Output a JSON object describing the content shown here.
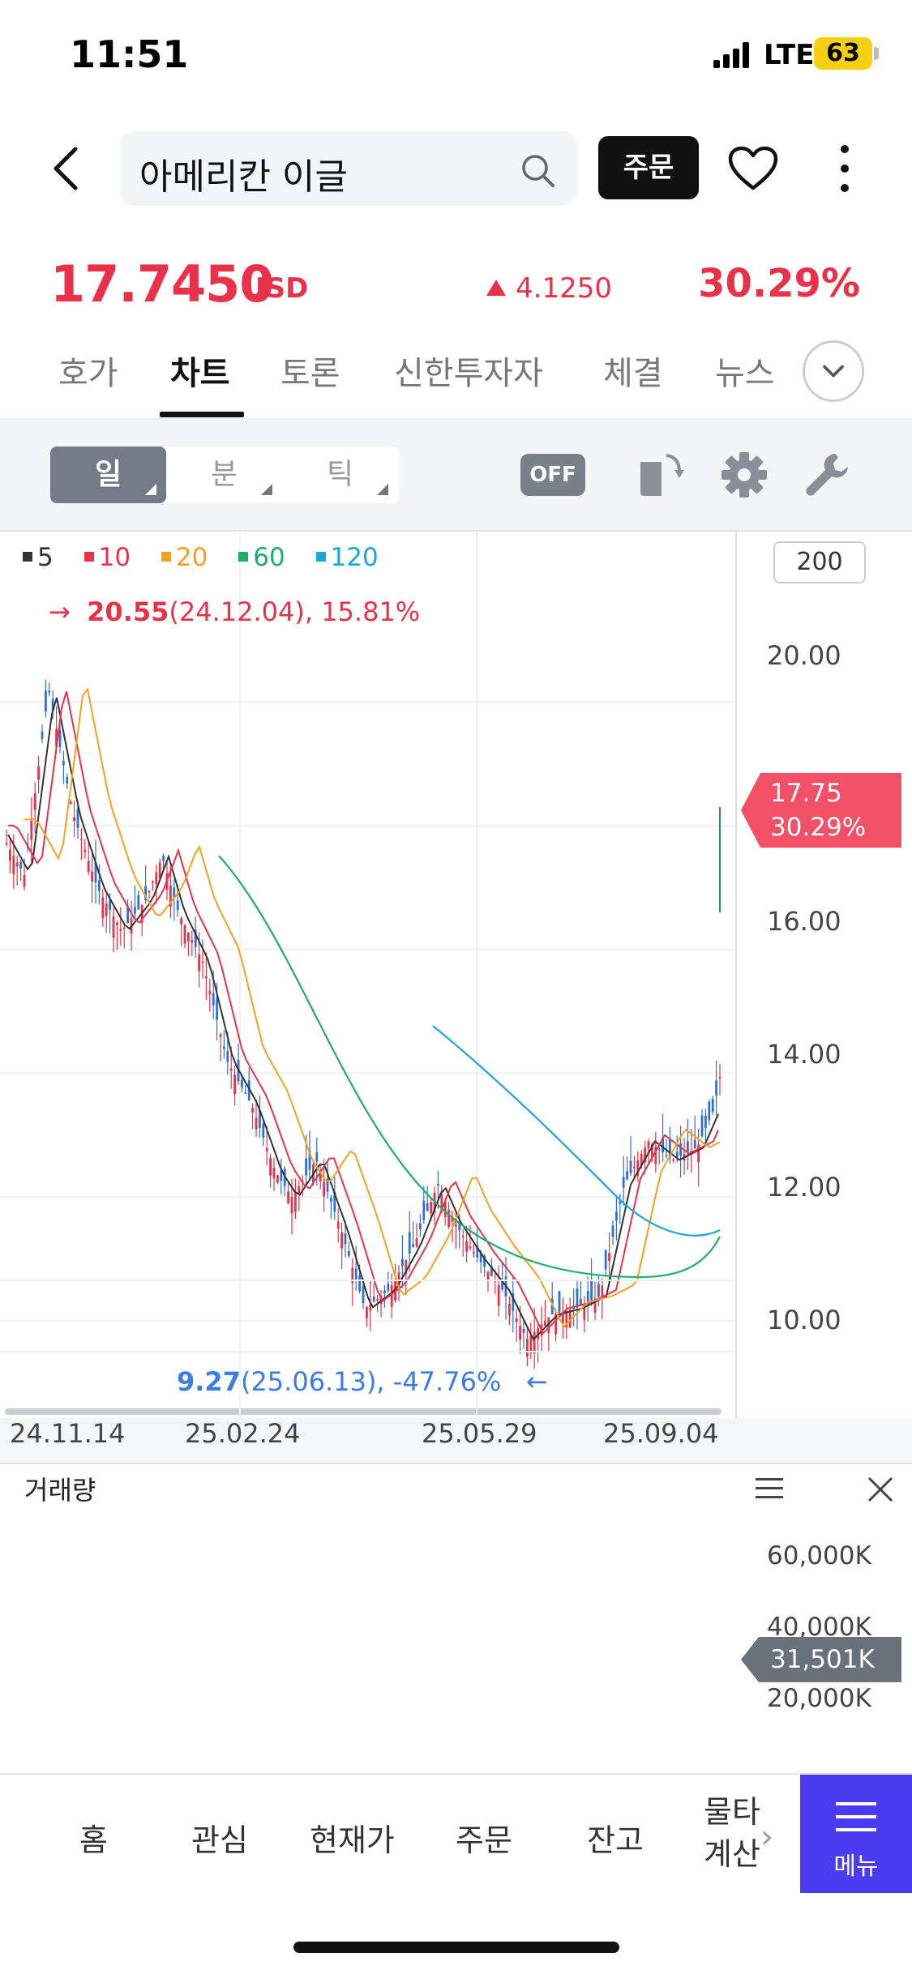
{
  "status": {
    "time": "11:51",
    "network": "LTE",
    "battery": "63"
  },
  "header": {
    "search_title": "아메리칸 이글",
    "order_label": "주문"
  },
  "quote": {
    "price": "17.7450",
    "currency": "USD",
    "change": "4.1250",
    "change_pct": "30.29%"
  },
  "tabs": [
    "호가",
    "차트",
    "토론",
    "신한투자자",
    "체결",
    "뉴스"
  ],
  "toolbar": {
    "periods": [
      "일",
      "분",
      "틱"
    ],
    "off_label": "OFF"
  },
  "legend": [
    {
      "label": "5",
      "color": "#333333"
    },
    {
      "label": "10",
      "color": "#e8324a"
    },
    {
      "label": "20",
      "color": "#f5a020"
    },
    {
      "label": "60",
      "color": "#1fae6a"
    },
    {
      "label": "120",
      "color": "#1aa6d6"
    }
  ],
  "chart": {
    "period_count": "200",
    "high_label": {
      "value": "20.55",
      "detail": "(24.12.04), 15.81%"
    },
    "low_label": {
      "value": "9.27",
      "detail": "(25.06.13), -47.76%"
    },
    "current_flag": {
      "price": "17.75",
      "pct": "30.29%"
    },
    "y_ticks": [
      "20.00",
      "16.00",
      "14.00",
      "12.00",
      "10.00"
    ],
    "x_ticks": [
      "24.11.14",
      "25.02.24",
      "25.05.29",
      "25.09.04"
    ]
  },
  "chart_data": {
    "type": "candlestick",
    "x_ticks": [
      "24.11.14",
      "25.02.24",
      "25.05.29",
      "25.09.04"
    ],
    "y_ticks": [
      20,
      16,
      14,
      12,
      10
    ],
    "moving_averages": [
      "5",
      "10",
      "20",
      "60",
      "120"
    ],
    "high": {
      "price": 20.55,
      "date": "24.12.04",
      "pct": 15.81
    },
    "low": {
      "price": 9.27,
      "date": "25.06.13",
      "pct": -47.76
    },
    "current": {
      "price": 17.75,
      "pct": 30.29
    },
    "volume": {
      "y_ticks": [
        "60,000K",
        "40,000K",
        "20,000K"
      ],
      "current": "31,501K"
    }
  },
  "volume": {
    "title": "거래량",
    "y_ticks": [
      "60,000K",
      "40,000K",
      "20,000K"
    ],
    "current": "31,501K"
  },
  "bottom_nav": {
    "items": [
      "홈",
      "관심",
      "현재가",
      "주문",
      "잔고"
    ],
    "partial_top": "물타",
    "partial_bottom": "계산",
    "menu_label": "메뉴"
  }
}
